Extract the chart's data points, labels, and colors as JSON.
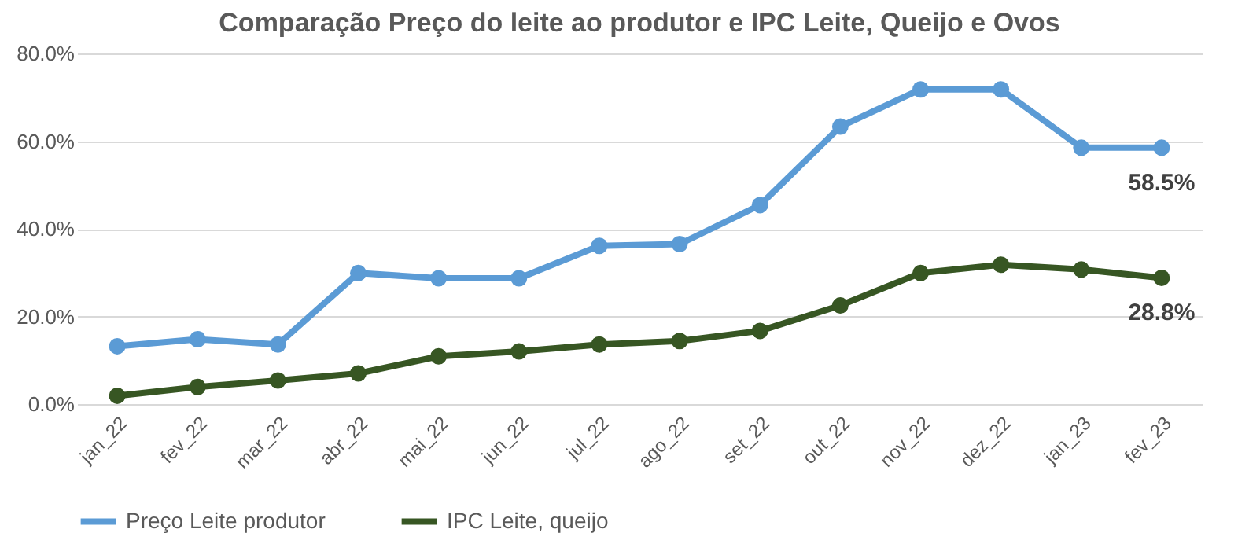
{
  "chart_data": {
    "type": "line",
    "title": "Comparação Preço do leite ao produtor e IPC Leite, Queijo e Ovos",
    "categories": [
      "jan_22",
      "fev_22",
      "mar_22",
      "abr_22",
      "mai_22",
      "jun_22",
      "jul_22",
      "ago_22",
      "set_22",
      "out_22",
      "nov_22",
      "dez_22",
      "jan_23",
      "fev_23"
    ],
    "series": [
      {
        "name": "Preço Leite produtor",
        "color": "#5b9bd5",
        "values": [
          13.2,
          14.8,
          13.6,
          29.9,
          28.7,
          28.7,
          36.1,
          36.5,
          45.4,
          63.3,
          71.8,
          71.8,
          58.5,
          58.5
        ],
        "value_labels": [
          null,
          null,
          null,
          null,
          null,
          null,
          null,
          null,
          null,
          null,
          null,
          null,
          null,
          "58.5%"
        ]
      },
      {
        "name": "IPC Leite, queijo",
        "color": "#375623",
        "values": [
          1.9,
          3.9,
          5.4,
          7.0,
          10.9,
          12.0,
          13.6,
          14.4,
          16.7,
          22.5,
          29.9,
          31.8,
          30.7,
          28.8
        ],
        "value_labels": [
          null,
          null,
          null,
          null,
          null,
          null,
          null,
          null,
          null,
          null,
          null,
          null,
          null,
          "28.8%"
        ]
      }
    ],
    "ylim": [
      0,
      80
    ],
    "yticks": [
      {
        "value": 0,
        "label": "0.0%"
      },
      {
        "value": 20,
        "label": "20.0%"
      },
      {
        "value": 40,
        "label": "40.0%"
      },
      {
        "value": 60,
        "label": "60.0%"
      },
      {
        "value": 80,
        "label": "80.0%"
      }
    ],
    "grid": "y",
    "legend": "bottom",
    "marker": "circle",
    "line_style": "solid"
  }
}
